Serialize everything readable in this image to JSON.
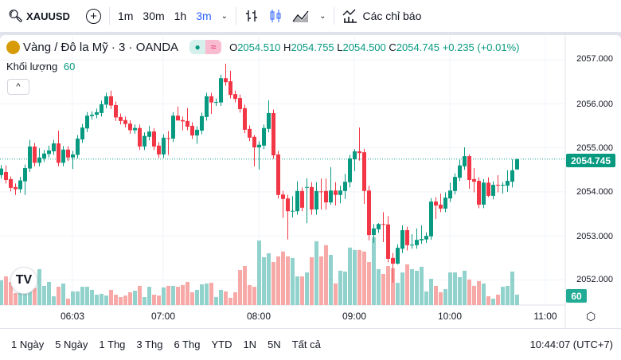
{
  "toolbar": {
    "symbol": "XAUUSD",
    "intervals": [
      "1m",
      "30m",
      "1h",
      "3m"
    ],
    "active_interval": "3m",
    "indicators_label": "Các chỉ báo",
    "accent": "#2962ff"
  },
  "legend": {
    "title": "Vàng / Đô la Mỹ · 3 · OANDA",
    "o_label": "O",
    "o": "2054.510",
    "h_label": "H",
    "h": "2054.755",
    "l_label": "L",
    "l": "2054.500",
    "c_label": "C",
    "c": "2054.745",
    "change": "+0.235 (+0.01%)",
    "volume_label": "Khối lượng",
    "volume_value": "60",
    "collapse_icon": "^"
  },
  "price_axis": {
    "labels": [
      "2057.000",
      "2056.000",
      "2055.000",
      "2054.000",
      "2053.000",
      "2052.000"
    ],
    "current_price": "2054.745",
    "current_volume": "60"
  },
  "time_axis": {
    "labels": [
      "06:03",
      "07:00",
      "08:00",
      "09:00",
      "10:00",
      "11:00"
    ]
  },
  "bottom": {
    "ranges": [
      "1 Ngày",
      "5 Ngày",
      "1 Thg",
      "3 Thg",
      "6 Thg",
      "YTD",
      "1N",
      "5N",
      "Tất cả"
    ],
    "clock": "10:44:07 (UTC+7)"
  },
  "colors": {
    "up": "#089981",
    "down": "#f23645",
    "up_vol": "#92d2cc",
    "down_vol": "#f7a9a7"
  },
  "chart_data": {
    "type": "candlestick",
    "ylim": [
      2051.8,
      2057.3
    ],
    "yticks": [
      2057,
      2056,
      2055,
      2054,
      2053,
      2052
    ],
    "last": 2054.745,
    "columns": [
      "open",
      "high",
      "low",
      "close",
      "volume"
    ],
    "candles": [
      [
        2054.38,
        2054.61,
        2054.3,
        2054.53,
        143
      ],
      [
        2054.45,
        2054.6,
        2054.19,
        2054.27,
        166
      ],
      [
        2054.29,
        2054.35,
        2054.01,
        2054.09,
        134
      ],
      [
        2054.11,
        2054.19,
        2053.93,
        2054.06,
        69
      ],
      [
        2054.06,
        2054.34,
        2053.98,
        2054.26,
        79
      ],
      [
        2054.24,
        2054.62,
        2053.93,
        2054.54,
        72
      ],
      [
        2054.53,
        2055.18,
        2054.45,
        2055.03,
        88
      ],
      [
        2055.03,
        2055.11,
        2054.58,
        2054.66,
        99
      ],
      [
        2054.66,
        2054.99,
        2054.58,
        2054.78,
        208
      ],
      [
        2054.76,
        2054.95,
        2054.68,
        2054.87,
        111
      ],
      [
        2054.86,
        2055.05,
        2054.78,
        2054.94,
        134
      ],
      [
        2054.92,
        2055.18,
        2054.84,
        2055.1,
        51
      ],
      [
        2055.1,
        2055.39,
        2054.58,
        2054.66,
        106
      ],
      [
        2054.66,
        2055.04,
        2054.58,
        2054.96,
        125
      ],
      [
        2054.96,
        2055.04,
        2054.7,
        2054.78,
        37
      ],
      [
        2054.78,
        2054.93,
        2054.52,
        2054.85,
        79
      ],
      [
        2054.84,
        2055.29,
        2054.76,
        2055.21,
        79
      ],
      [
        2055.19,
        2055.54,
        2055.11,
        2055.46,
        106
      ],
      [
        2055.44,
        2055.81,
        2055.36,
        2055.73,
        106
      ],
      [
        2055.72,
        2055.83,
        2055.64,
        2055.75,
        88
      ],
      [
        2055.75,
        2055.89,
        2055.67,
        2055.81,
        60
      ],
      [
        2055.79,
        2056.07,
        2055.71,
        2055.99,
        65
      ],
      [
        2055.98,
        2056.25,
        2055.9,
        2056.17,
        55
      ],
      [
        2056.17,
        2056.3,
        2055.88,
        2055.96,
        88
      ],
      [
        2055.97,
        2056.05,
        2055.61,
        2055.69,
        60
      ],
      [
        2055.7,
        2055.78,
        2055.53,
        2055.61,
        46
      ],
      [
        2055.63,
        2055.71,
        2055.46,
        2055.54,
        55
      ],
      [
        2055.55,
        2055.63,
        2055.32,
        2055.4,
        74
      ],
      [
        2055.4,
        2055.53,
        2055.32,
        2055.45,
        83
      ],
      [
        2055.45,
        2055.53,
        2054.95,
        2055.03,
        111
      ],
      [
        2055.03,
        2055.35,
        2054.95,
        2055.27,
        46
      ],
      [
        2055.25,
        2055.5,
        2055.17,
        2055.37,
        106
      ],
      [
        2055.37,
        2055.45,
        2054.95,
        2055.03,
        60
      ],
      [
        2055.05,
        2055.13,
        2054.77,
        2054.85,
        55
      ],
      [
        2054.85,
        2055.31,
        2054.77,
        2055.23,
        102
      ],
      [
        2055.22,
        2055.38,
        2054.84,
        2055.21,
        111
      ],
      [
        2055.21,
        2055.81,
        2055.13,
        2055.73,
        111
      ],
      [
        2055.73,
        2055.94,
        2055.65,
        2055.62,
        106
      ],
      [
        2055.63,
        2055.71,
        2055.4,
        2055.6,
        116
      ],
      [
        2055.61,
        2055.9,
        2055.4,
        2055.48,
        134
      ],
      [
        2055.5,
        2055.58,
        2055.2,
        2055.28,
        74
      ],
      [
        2055.28,
        2055.49,
        2055.09,
        2055.41,
        88
      ],
      [
        2055.39,
        2055.8,
        2055.31,
        2055.72,
        120
      ],
      [
        2055.7,
        2056.25,
        2055.62,
        2056.17,
        125
      ],
      [
        2056.17,
        2056.25,
        2055.77,
        2056.03,
        129
      ],
      [
        2056.03,
        2056.12,
        2055.95,
        2056.04,
        46
      ],
      [
        2056.03,
        2056.66,
        2055.95,
        2056.58,
        88
      ],
      [
        2056.58,
        2056.91,
        2056.41,
        2056.49,
        79
      ],
      [
        2056.51,
        2056.75,
        2056.12,
        2056.2,
        42
      ],
      [
        2056.22,
        2056.3,
        2056.03,
        2056.11,
        74
      ],
      [
        2056.13,
        2056.21,
        2055.8,
        2055.88,
        203
      ],
      [
        2055.9,
        2055.98,
        2055.33,
        2055.41,
        226
      ],
      [
        2055.43,
        2055.51,
        2055.15,
        2055.23,
        116
      ],
      [
        2055.25,
        2055.29,
        2054.58,
        2055.01,
        106
      ],
      [
        2055.01,
        2055.15,
        2054.51,
        2055.07,
        374
      ],
      [
        2055.05,
        2055.53,
        2054.97,
        2055.45,
        277
      ],
      [
        2055.43,
        2056.08,
        2055.35,
        2055.79,
        300
      ],
      [
        2055.79,
        2055.87,
        2054.75,
        2054.83,
        249
      ],
      [
        2054.85,
        2054.93,
        2053.85,
        2053.93,
        282
      ],
      [
        2053.94,
        2054.02,
        2053.41,
        2053.84,
        310
      ],
      [
        2053.85,
        2053.93,
        2052.92,
        2053.56,
        282
      ],
      [
        2053.56,
        2053.9,
        2053.42,
        2053.57,
        273
      ],
      [
        2053.56,
        2054.24,
        2053.48,
        2054.02,
        166
      ],
      [
        2054.02,
        2054.1,
        2053.56,
        2053.64,
        166
      ],
      [
        2054.11,
        2054.31,
        2053.29,
        2054.11,
        189
      ],
      [
        2054.11,
        2054.22,
        2053.48,
        2053.6,
        277
      ],
      [
        2053.6,
        2054.22,
        2053.48,
        2054.02,
        370
      ],
      [
        2054.01,
        2054.3,
        2053.6,
        2054.0,
        282
      ],
      [
        2054.02,
        2054.3,
        2053.6,
        2053.76,
        347
      ],
      [
        2053.76,
        2054.56,
        2053.71,
        2054.03,
        291
      ],
      [
        2054.03,
        2054.22,
        2053.69,
        2053.93,
        125
      ],
      [
        2053.93,
        2054.14,
        2053.74,
        2054.03,
        199
      ],
      [
        2054.02,
        2054.41,
        2053.84,
        2054.23,
        194
      ],
      [
        2054.22,
        2054.84,
        2054.1,
        2054.76,
        333
      ],
      [
        2054.74,
        2054.97,
        2054.47,
        2054.92,
        319
      ],
      [
        2054.92,
        2055.46,
        2054.71,
        2054.88,
        319
      ],
      [
        2054.9,
        2054.98,
        2053.73,
        2054.02,
        310
      ],
      [
        2054.03,
        2054.14,
        2052.9,
        2053.02,
        249
      ],
      [
        2053.02,
        2053.27,
        2052.84,
        2053.17,
        393
      ],
      [
        2053.15,
        2053.29,
        2053.07,
        2053.27,
        208
      ],
      [
        2053.27,
        2053.54,
        2052.86,
        2053.26,
        180
      ],
      [
        2053.26,
        2053.45,
        2052.4,
        2052.48,
        226
      ],
      [
        2052.5,
        2052.61,
        2051.94,
        2052.37,
        213
      ],
      [
        2052.37,
        2052.81,
        2052.35,
        2052.73,
        129
      ],
      [
        2052.71,
        2053.24,
        2052.61,
        2053.13,
        189
      ],
      [
        2053.13,
        2053.21,
        2052.67,
        2052.79,
        236
      ],
      [
        2052.79,
        2053.04,
        2052.71,
        2052.8,
        208
      ],
      [
        2052.79,
        2053.17,
        2052.71,
        2052.91,
        199
      ],
      [
        2052.9,
        2053.24,
        2052.82,
        2052.93,
        222
      ],
      [
        2052.92,
        2053.08,
        2052.84,
        2053.0,
        79
      ],
      [
        2052.99,
        2053.86,
        2052.91,
        2053.78,
        152
      ],
      [
        2053.78,
        2053.88,
        2053.38,
        2053.69,
        111
      ],
      [
        2053.71,
        2053.96,
        2053.54,
        2053.62,
        74
      ],
      [
        2053.62,
        2053.99,
        2053.54,
        2053.87,
        92
      ],
      [
        2053.85,
        2054.21,
        2053.77,
        2054.03,
        189
      ],
      [
        2054.02,
        2054.42,
        2053.94,
        2054.34,
        189
      ],
      [
        2054.32,
        2054.73,
        2054.24,
        2054.6,
        162
      ],
      [
        2054.58,
        2055.01,
        2054.5,
        2054.81,
        199
      ],
      [
        2054.81,
        2054.85,
        2054.07,
        2054.27,
        148
      ],
      [
        2054.29,
        2054.54,
        2053.99,
        2054.23,
        111
      ],
      [
        2054.25,
        2054.33,
        2053.63,
        2053.71,
        139
      ],
      [
        2053.71,
        2054.29,
        2053.63,
        2054.21,
        125
      ],
      [
        2054.21,
        2054.33,
        2053.88,
        2053.91,
        51
      ],
      [
        2053.91,
        2054.24,
        2053.83,
        2054.16,
        37
      ],
      [
        2054.16,
        2054.38,
        2053.99,
        2054.15,
        60
      ],
      [
        2054.15,
        2054.22,
        2053.96,
        2054.16,
        106
      ],
      [
        2054.14,
        2054.49,
        2054.0,
        2054.25,
        111
      ],
      [
        2054.23,
        2054.74,
        2054.1,
        2054.49,
        194
      ],
      [
        2054.51,
        2054.75,
        2054.5,
        2054.745,
        60
      ]
    ]
  }
}
